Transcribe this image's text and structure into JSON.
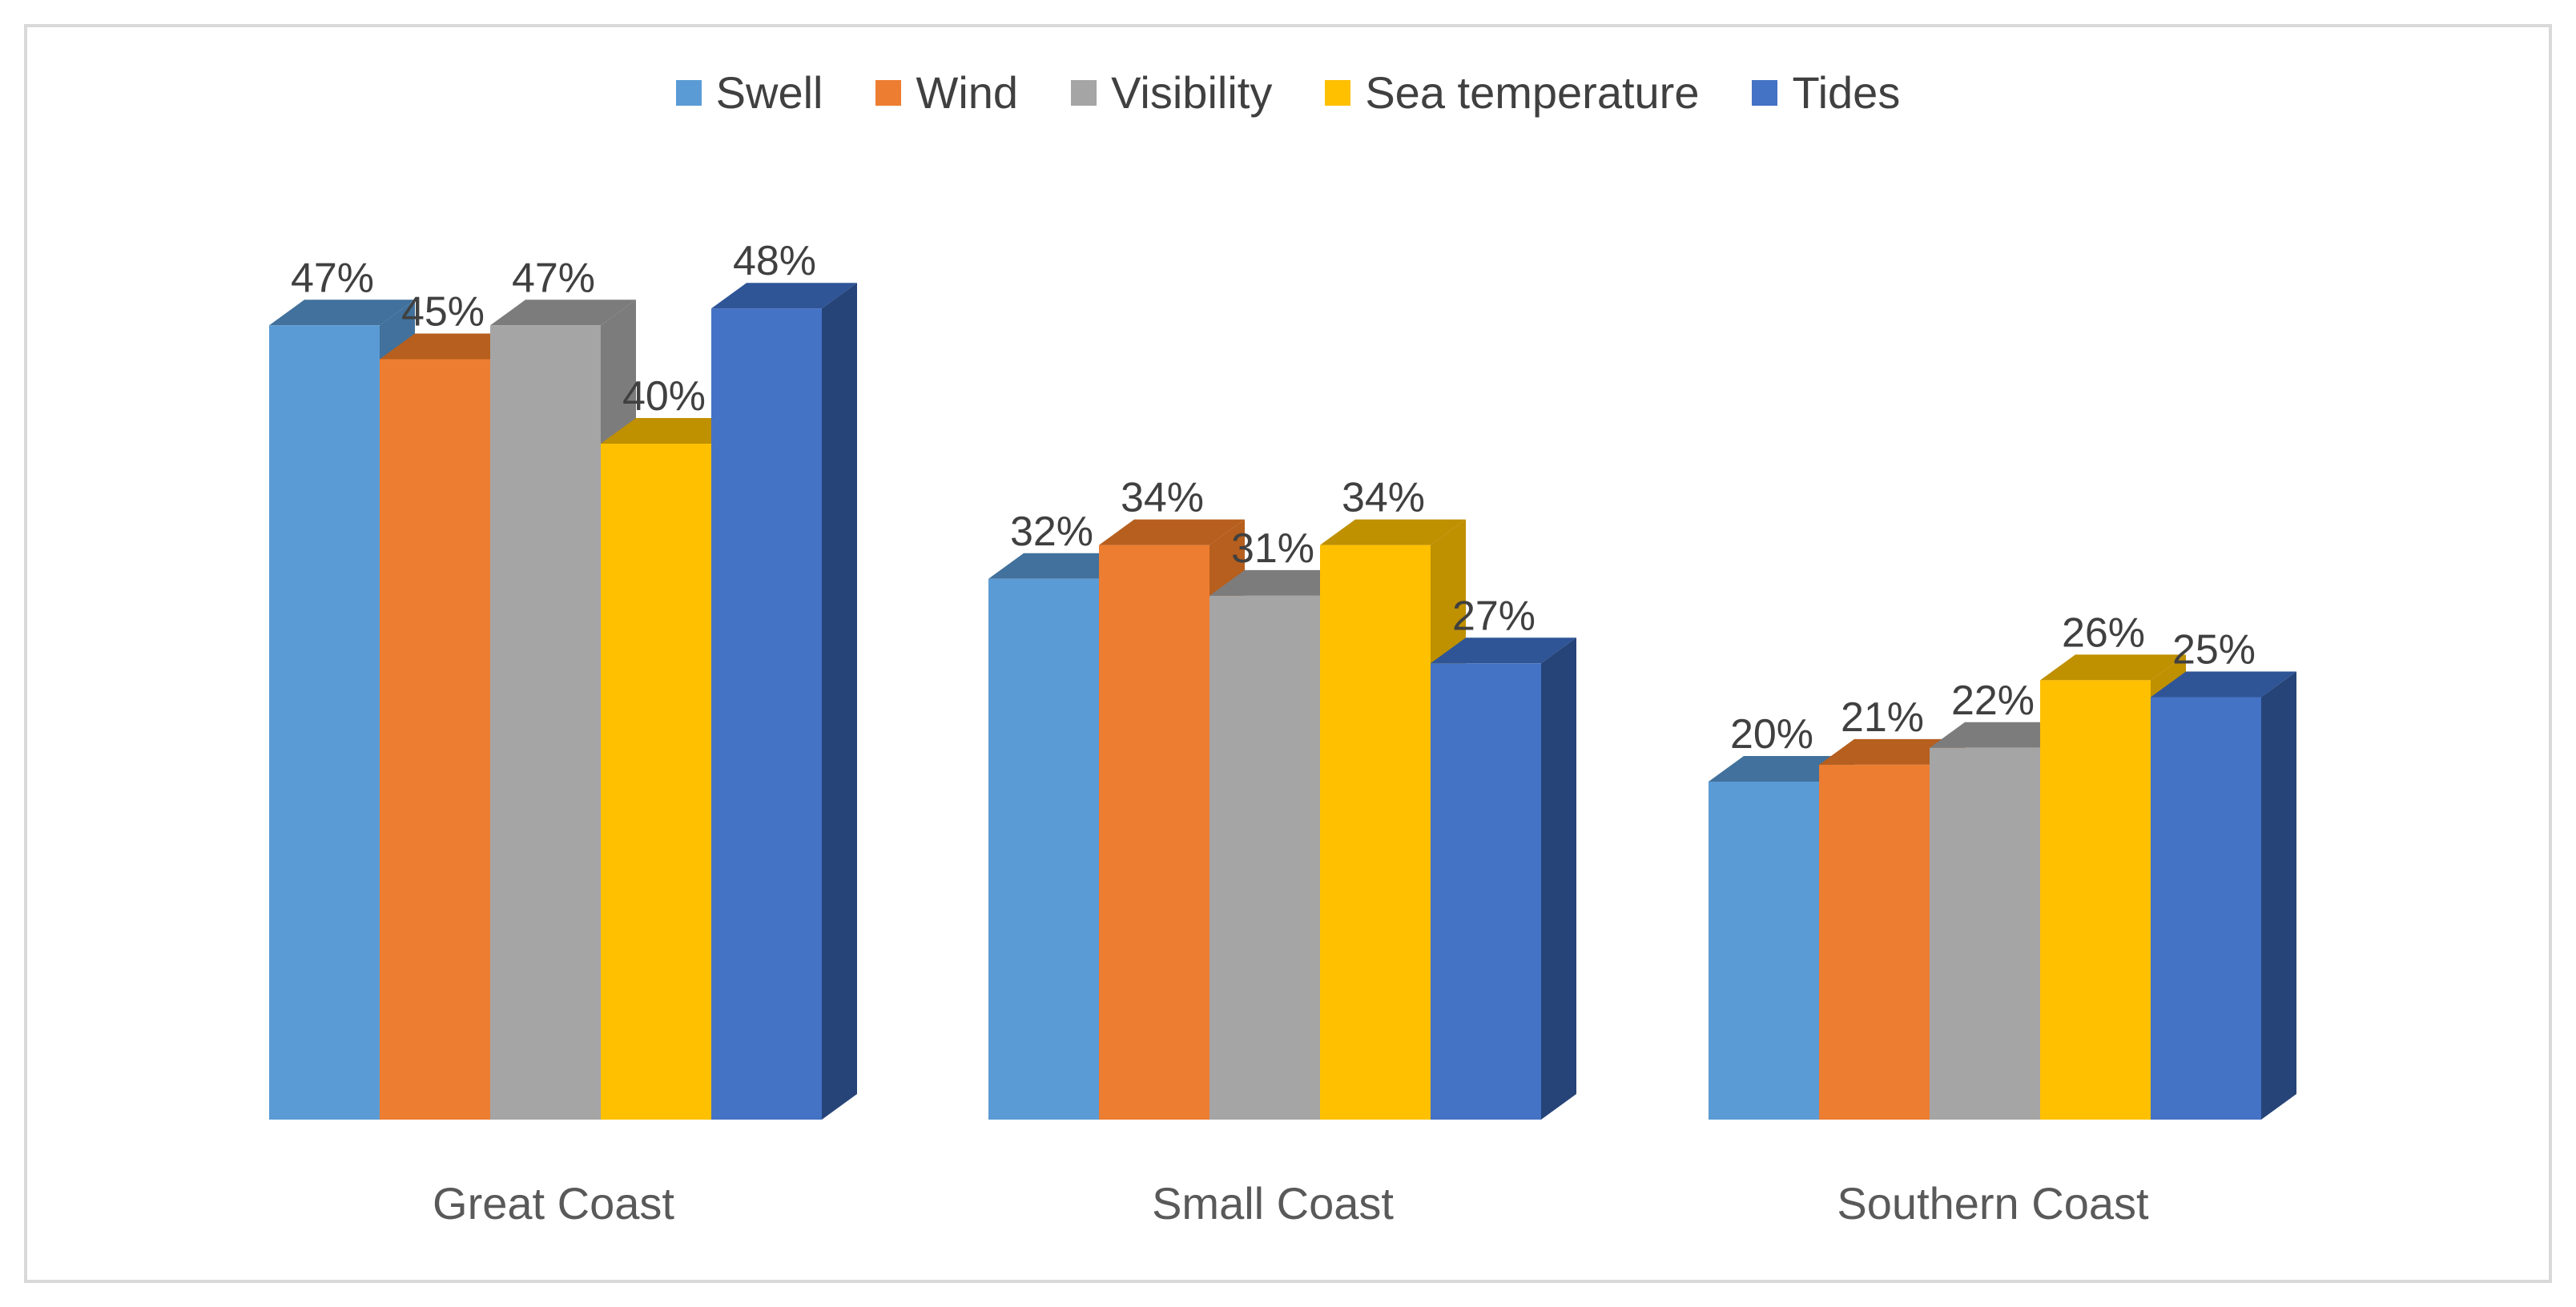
{
  "chart_data": {
    "type": "bar",
    "variant": "3d-clustered-column",
    "title": "",
    "xlabel": "",
    "ylabel": "",
    "ylim": [
      0,
      55
    ],
    "grid": false,
    "legend_position": "top",
    "value_suffix": "%",
    "categories": [
      "Great Coast",
      "Small Coast",
      "Southern Coast"
    ],
    "series": [
      {
        "name": "Swell",
        "color": "#5B9BD5",
        "top_color": "#41719C",
        "side_color": "#41719C",
        "values": [
          47,
          32,
          20
        ]
      },
      {
        "name": "Wind",
        "color": "#ED7D31",
        "top_color": "#B65F1E",
        "side_color": "#B65F1E",
        "values": [
          45,
          34,
          21
        ]
      },
      {
        "name": "Visibility",
        "color": "#A5A5A5",
        "top_color": "#7C7C7C",
        "side_color": "#7C7C7C",
        "values": [
          47,
          31,
          22
        ]
      },
      {
        "name": "Sea temperature",
        "color": "#FFC000",
        "top_color": "#BF9000",
        "side_color": "#BF9000",
        "values": [
          40,
          34,
          26
        ]
      },
      {
        "name": "Tides",
        "color": "#4472C4",
        "top_color": "#2F5597",
        "side_color": "#264478",
        "values": [
          48,
          27,
          25
        ]
      }
    ]
  }
}
